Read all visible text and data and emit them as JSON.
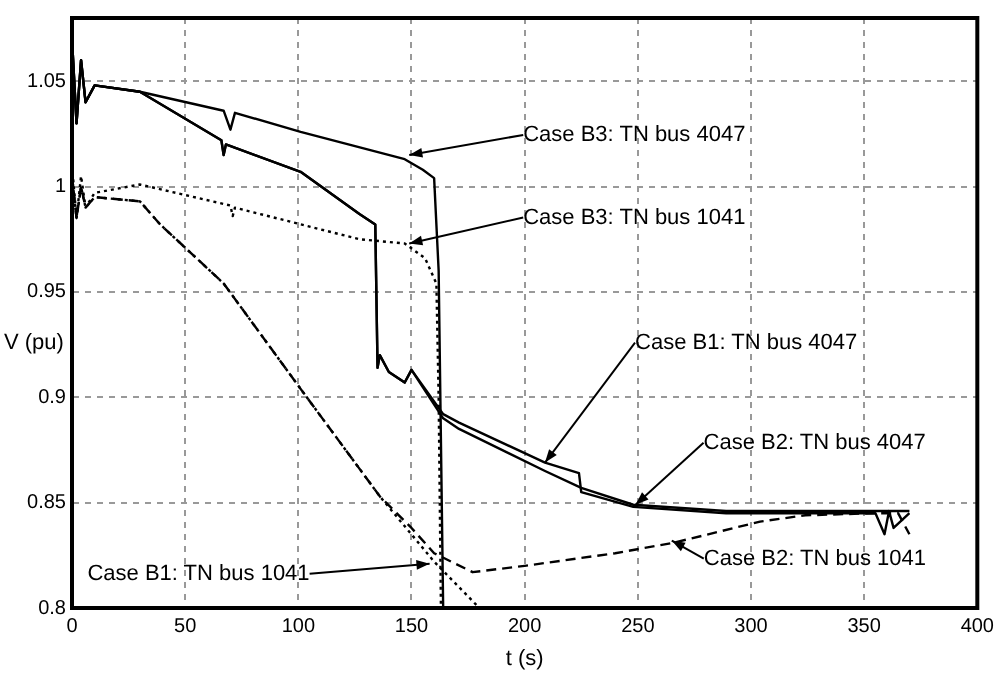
{
  "chart_data": {
    "type": "line",
    "xlabel": "t (s)",
    "ylabel": "V (pu)",
    "xlim": [
      0,
      400
    ],
    "xticks": [
      0,
      50,
      100,
      150,
      200,
      250,
      300,
      350,
      400
    ],
    "ylim": [
      0.8,
      1.08
    ],
    "yticks": [
      0.8,
      0.85,
      0.9,
      0.95,
      1,
      1.05
    ],
    "grid": true,
    "legend": false,
    "marker": "none",
    "series": [
      {
        "color": "#000000",
        "line_style": "solid",
        "x": [
          0,
          2,
          4,
          6,
          10,
          30,
          67,
          70,
          72,
          101,
          147,
          155,
          160,
          162,
          164
        ],
        "values": [
          1.07,
          1.03,
          1.06,
          1.04,
          1.048,
          1.045,
          1.036,
          1.027,
          1.035,
          1.026,
          1.013,
          1.008,
          1.004,
          0.96,
          0.8
        ]
      },
      {
        "color": "#000000",
        "line_style": "dotted",
        "x": [
          0,
          2,
          4,
          6,
          10,
          30,
          70,
          71,
          72,
          127,
          147,
          156,
          161,
          162,
          163
        ],
        "values": [
          1.01,
          0.985,
          1.005,
          0.99,
          0.997,
          1.001,
          0.991,
          0.986,
          0.99,
          0.975,
          0.973,
          0.966,
          0.954,
          0.9,
          0.8
        ]
      },
      {
        "color": "#000000",
        "line_style": "solid",
        "x": [
          0,
          2,
          4,
          6,
          10,
          30,
          66,
          67,
          68,
          101,
          127,
          134,
          135,
          136,
          140,
          147,
          150,
          164,
          171,
          209,
          224,
          225,
          248,
          289,
          355,
          359,
          361,
          363,
          370
        ],
        "values": [
          1.07,
          1.03,
          1.06,
          1.04,
          1.048,
          1.045,
          1.022,
          1.015,
          1.02,
          1.007,
          0.987,
          0.982,
          0.914,
          0.92,
          0.912,
          0.907,
          0.913,
          0.892,
          0.888,
          0.869,
          0.864,
          0.855,
          0.848,
          0.845,
          0.845,
          0.835,
          0.846,
          0.838,
          0.845
        ]
      },
      {
        "color": "#000000",
        "line_style": "solid",
        "x": [
          0,
          2,
          4,
          6,
          10,
          30,
          66,
          67,
          68,
          101,
          127,
          134,
          135,
          136,
          140,
          147,
          150,
          164,
          171,
          209,
          225,
          248,
          289,
          355,
          370
        ],
        "values": [
          1.07,
          1.03,
          1.06,
          1.04,
          1.048,
          1.045,
          1.022,
          1.015,
          1.02,
          1.007,
          0.987,
          0.982,
          0.914,
          0.92,
          0.912,
          0.907,
          0.913,
          0.89,
          0.885,
          0.865,
          0.857,
          0.849,
          0.846,
          0.846,
          0.846
        ]
      },
      {
        "color": "#000000",
        "line_style": "dotted",
        "x": [
          0,
          2,
          4,
          6,
          10,
          30,
          39,
          67,
          101,
          136,
          160,
          180
        ],
        "values": [
          1.005,
          0.985,
          1,
          0.99,
          0.995,
          0.993,
          0.982,
          0.954,
          0.904,
          0.853,
          0.822,
          0.8
        ]
      },
      {
        "color": "#000000",
        "line_style": "dashed",
        "x": [
          0,
          2,
          4,
          6,
          10,
          30,
          39,
          67,
          101,
          136,
          150,
          160,
          177,
          200,
          240,
          266,
          304,
          324,
          355,
          365,
          370
        ],
        "values": [
          1.005,
          0.985,
          1,
          0.99,
          0.995,
          0.993,
          0.982,
          0.954,
          0.904,
          0.853,
          0.838,
          0.826,
          0.817,
          0.82,
          0.826,
          0.831,
          0.841,
          0.844,
          0.845,
          0.845,
          0.835
        ]
      }
    ],
    "annotations": [
      {
        "text": "Case B3: TN bus 4047",
        "x": 149,
        "y": 1.015
      },
      {
        "text": "Case B3: TN bus 1041",
        "x": 149,
        "y": 0.973
      },
      {
        "text": "Case B1: TN bus 4047",
        "x": 209,
        "y": 0.869
      },
      {
        "text": "Case B2: TN bus 4047",
        "x": 249,
        "y": 0.849
      },
      {
        "text": "Case B1: TN bus 1041",
        "x": 158,
        "y": 0.821
      },
      {
        "text": "Case B2: TN bus 1041",
        "x": 265,
        "y": 0.832
      }
    ]
  }
}
